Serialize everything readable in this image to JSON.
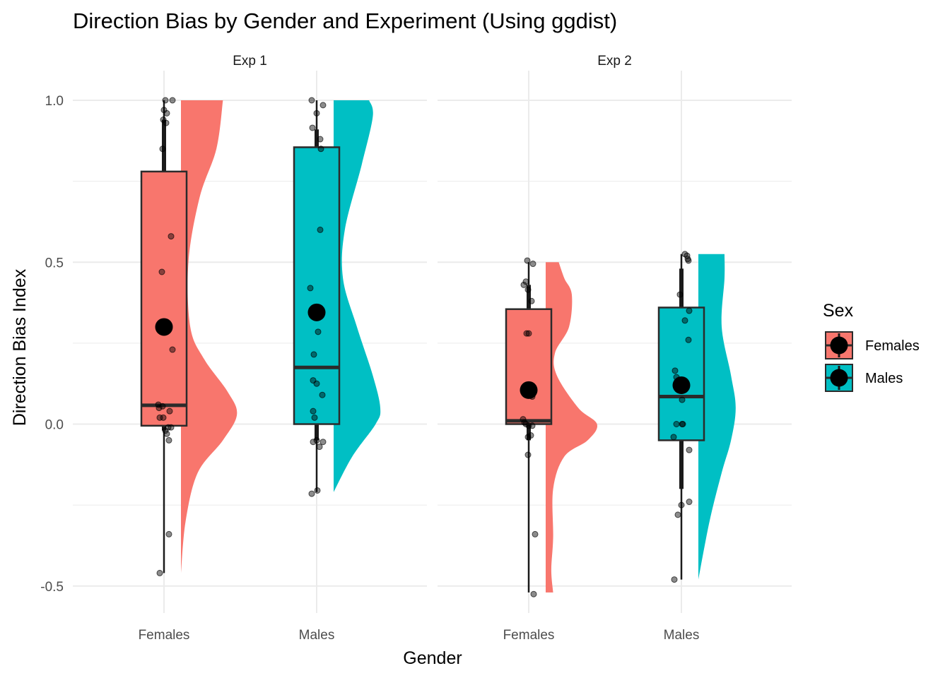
{
  "chart_data": {
    "type": "raincloud",
    "title": "Direction Bias by Gender and Experiment (Using ggdist)",
    "xlabel": "Gender",
    "ylabel": "Direction Bias Index",
    "categories": [
      "Females",
      "Males"
    ],
    "y_ticks": [
      -0.5,
      0.0,
      0.5,
      1.0
    ],
    "y_tick_labels": [
      "-0.5",
      "0.0",
      "0.5",
      "1.0"
    ],
    "ylim": [
      -0.6,
      1.0
    ],
    "grid": true,
    "legend": {
      "title": "Sex",
      "placement": "right",
      "entries": [
        {
          "label": "Females",
          "color": "#F8766D"
        },
        {
          "label": "Males",
          "color": "#00BFC4"
        }
      ]
    },
    "panels": [
      {
        "strip": "Exp 1",
        "groups": [
          {
            "category": "Females",
            "color": "#F8766D",
            "box": {
              "q1": -0.005,
              "median": 0.058,
              "q3": 0.78
            },
            "interval_thick": [
              -0.02,
              0.94
            ],
            "interval_thin": [
              -0.46,
              1.0
            ],
            "mean": 0.3,
            "density": {
              "y": [
                -0.46,
                -0.3,
                -0.15,
                -0.05,
                0.03,
                0.1,
                0.2,
                0.3,
                0.5,
                0.7,
                0.85,
                1.0
              ],
              "w": [
                0.0,
                0.05,
                0.18,
                0.45,
                0.6,
                0.5,
                0.25,
                0.1,
                0.08,
                0.2,
                0.38,
                0.45
              ]
            },
            "points": [
              [
                0.02,
                1.0
              ],
              [
                0.12,
                1.0
              ],
              [
                0.0,
                0.97
              ],
              [
                0.04,
                0.96
              ],
              [
                -0.01,
                0.94
              ],
              [
                0.03,
                0.93
              ],
              [
                -0.02,
                0.85
              ],
              [
                0.1,
                0.58
              ],
              [
                -0.03,
                0.47
              ],
              [
                0.12,
                0.23
              ],
              [
                -0.08,
                0.06
              ],
              [
                -0.02,
                0.055
              ],
              [
                0.08,
                0.04
              ],
              [
                -0.07,
                0.05
              ],
              [
                -0.06,
                0.02
              ],
              [
                -0.01,
                0.02
              ],
              [
                0.06,
                -0.01
              ],
              [
                0.1,
                -0.01
              ],
              [
                0.02,
                -0.02
              ],
              [
                0.04,
                -0.03
              ],
              [
                0.07,
                -0.05
              ],
              [
                0.07,
                -0.34
              ],
              [
                -0.06,
                -0.46
              ]
            ]
          },
          {
            "category": "Males",
            "color": "#00BFC4",
            "box": {
              "q1": 0.0,
              "median": 0.175,
              "q3": 0.855
            },
            "interval_thick": [
              -0.05,
              0.91
            ],
            "interval_thin": [
              -0.21,
              1.0
            ],
            "mean": 0.345,
            "density": {
              "y": [
                -0.21,
                -0.1,
                0.0,
                0.05,
                0.15,
                0.3,
                0.45,
                0.6,
                0.8,
                0.95,
                1.0
              ],
              "w": [
                0.0,
                0.2,
                0.45,
                0.5,
                0.42,
                0.25,
                0.1,
                0.12,
                0.3,
                0.42,
                0.38
              ]
            },
            "points": [
              [
                -0.07,
                1.0
              ],
              [
                0.0,
                0.96
              ],
              [
                0.09,
                0.985
              ],
              [
                -0.06,
                0.915
              ],
              [
                0.05,
                0.88
              ],
              [
                0.06,
                0.85
              ],
              [
                0.05,
                0.6
              ],
              [
                -0.09,
                0.42
              ],
              [
                0.02,
                0.285
              ],
              [
                -0.04,
                0.215
              ],
              [
                -0.05,
                0.135
              ],
              [
                0.0,
                0.125
              ],
              [
                0.08,
                0.09
              ],
              [
                -0.05,
                0.04
              ],
              [
                -0.03,
                0.02
              ],
              [
                0.0,
                -0.05
              ],
              [
                -0.05,
                -0.055
              ],
              [
                0.09,
                -0.055
              ],
              [
                0.04,
                -0.07
              ],
              [
                0.01,
                -0.205
              ],
              [
                -0.07,
                -0.215
              ]
            ]
          }
        ]
      },
      {
        "strip": "Exp 2",
        "groups": [
          {
            "category": "Females",
            "color": "#F8766D",
            "box": {
              "q1": 0.0,
              "median": 0.01,
              "q3": 0.355
            },
            "interval_thick": [
              -0.05,
              0.43
            ],
            "interval_thin": [
              -0.52,
              0.5
            ],
            "mean": 0.105,
            "density": {
              "y": [
                -0.52,
                -0.45,
                -0.35,
                -0.2,
                -0.1,
                -0.05,
                0.0,
                0.05,
                0.15,
                0.22,
                0.3,
                0.4,
                0.45,
                0.5
              ],
              "w": [
                0.08,
                0.06,
                0.08,
                0.08,
                0.2,
                0.45,
                0.55,
                0.35,
                0.12,
                0.1,
                0.25,
                0.28,
                0.2,
                0.14
              ]
            },
            "points": [
              [
                -0.02,
                0.505
              ],
              [
                0.06,
                0.495
              ],
              [
                -0.04,
                0.44
              ],
              [
                -0.07,
                0.43
              ],
              [
                -0.01,
                0.415
              ],
              [
                0.04,
                0.38
              ],
              [
                -0.03,
                0.28
              ],
              [
                0.0,
                0.28
              ],
              [
                0.05,
                0.085
              ],
              [
                -0.08,
                0.015
              ],
              [
                -0.06,
                0.005
              ],
              [
                -0.04,
                0.0
              ],
              [
                0.0,
                -0.005
              ],
              [
                0.05,
                -0.005
              ],
              [
                -0.01,
                -0.04
              ],
              [
                0.03,
                -0.035
              ],
              [
                -0.01,
                -0.095
              ],
              [
                0.09,
                -0.34
              ],
              [
                0.07,
                -0.525
              ]
            ]
          },
          {
            "category": "Males",
            "color": "#00BFC4",
            "box": {
              "q1": -0.05,
              "median": 0.085,
              "q3": 0.36
            },
            "interval_thick": [
              -0.2,
              0.48
            ],
            "interval_thin": [
              -0.48,
              0.525
            ],
            "mean": 0.12,
            "density": {
              "y": [
                -0.48,
                -0.3,
                -0.15,
                -0.05,
                0.05,
                0.15,
                0.3,
                0.45,
                0.525
              ],
              "w": [
                0.0,
                0.12,
                0.25,
                0.35,
                0.4,
                0.35,
                0.25,
                0.28,
                0.28
              ]
            },
            "points": [
              [
                0.05,
                0.525
              ],
              [
                0.08,
                0.52
              ],
              [
                0.09,
                0.51
              ],
              [
                0.1,
                0.505
              ],
              [
                -0.02,
                0.4
              ],
              [
                0.11,
                0.35
              ],
              [
                0.05,
                0.32
              ],
              [
                0.1,
                0.26
              ],
              [
                -0.09,
                0.165
              ],
              [
                -0.07,
                0.145
              ],
              [
                0.02,
                0.11
              ],
              [
                0.01,
                0.075
              ],
              [
                -0.11,
                -0.04
              ],
              [
                -0.07,
                0.0
              ],
              [
                0.01,
                0.0
              ],
              [
                0.02,
                0.0
              ],
              [
                0.11,
                -0.08
              ],
              [
                0.0,
                -0.25
              ],
              [
                0.11,
                -0.24
              ],
              [
                -0.05,
                -0.28
              ],
              [
                -0.1,
                -0.48
              ]
            ]
          }
        ]
      }
    ]
  }
}
